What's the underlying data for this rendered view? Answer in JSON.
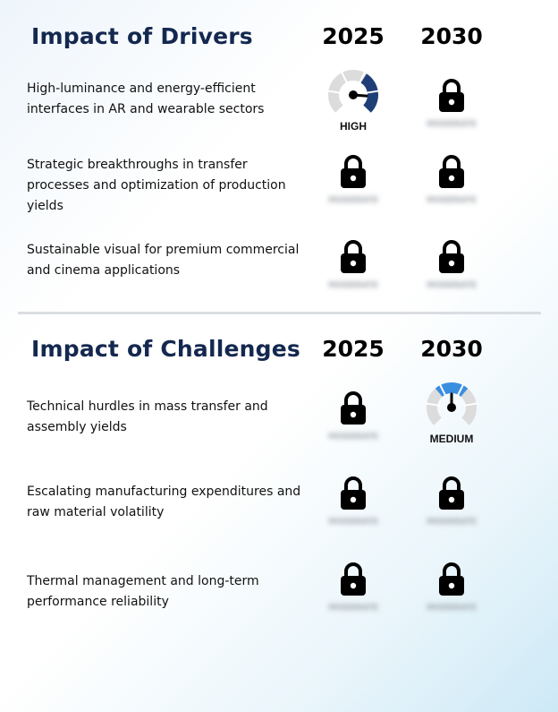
{
  "drivers": {
    "title": "Impact of Drivers",
    "year_2025": "2025",
    "year_2030": "2030",
    "rows": [
      {
        "text": "High-luminance and energy-efficient interfaces in AR and wearable sectors",
        "c2025": {
          "kind": "gauge",
          "level": "HIGH",
          "fill_fraction": 0.85,
          "color": "#1f3e78"
        },
        "c2030": {
          "kind": "lock",
          "blurred": "MODERATE"
        }
      },
      {
        "text": "Strategic breakthroughs in transfer processes and optimization of production yields",
        "c2025": {
          "kind": "lock",
          "blurred": "MODERATE"
        },
        "c2030": {
          "kind": "lock",
          "blurred": "MODERATE"
        }
      },
      {
        "text": "Sustainable visual for premium commercial and cinema applications",
        "c2025": {
          "kind": "lock",
          "blurred": "MODERATE"
        },
        "c2030": {
          "kind": "lock",
          "blurred": "MODERATE"
        }
      }
    ]
  },
  "challenges": {
    "title": "Impact of Challenges",
    "year_2025": "2025",
    "year_2030": "2030",
    "rows": [
      {
        "text": "Technical hurdles in mass transfer and assembly yields",
        "c2025": {
          "kind": "lock",
          "blurred": "MODERATE"
        },
        "c2030": {
          "kind": "gauge",
          "level": "MEDIUM",
          "fill_fraction": 0.5,
          "color": "#3a8ee0"
        }
      },
      {
        "text": "Escalating manufacturing expenditures and raw material volatility",
        "c2025": {
          "kind": "lock",
          "blurred": "MODERATE"
        },
        "c2030": {
          "kind": "lock",
          "blurred": "MODERATE"
        }
      },
      {
        "text": "Thermal management and long-term performance reliability",
        "c2025": {
          "kind": "lock",
          "blurred": "MODERATE"
        },
        "c2030": {
          "kind": "lock",
          "blurred": "MODERATE"
        }
      }
    ]
  },
  "icons": {
    "locked": "lock-icon",
    "gauge": "gauge-icon"
  },
  "colors": {
    "title": "#14284f",
    "gauge_track": "#dcdcdc",
    "needle": "#000000"
  }
}
